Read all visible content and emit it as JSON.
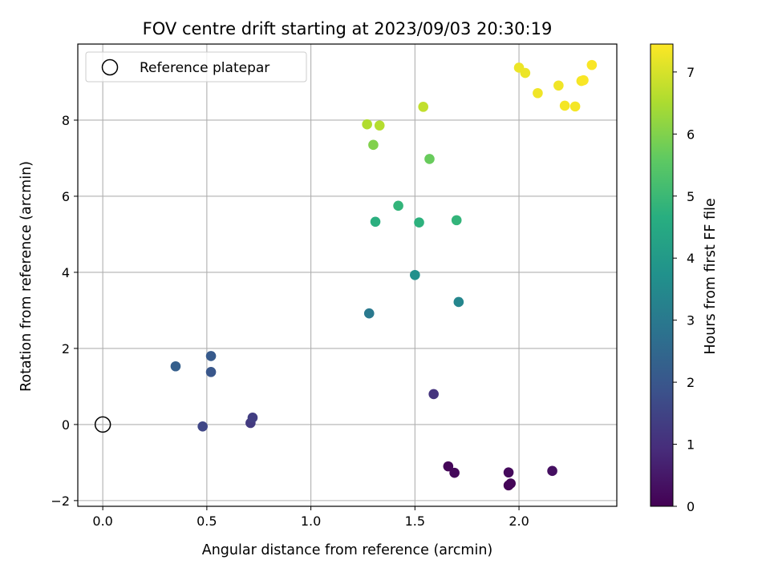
{
  "chart_data": {
    "type": "scatter",
    "title": "FOV centre drift starting at 2023/09/03 20:30:19",
    "xlabel": "Angular distance from reference (arcmin)",
    "ylabel": "Rotation from reference (arcmin)",
    "xlim": [
      -0.12,
      2.47
    ],
    "ylim": [
      -2.15,
      10.0
    ],
    "xticks": [
      0.0,
      0.5,
      1.0,
      1.5,
      2.0
    ],
    "xtick_labels": [
      "0.0",
      "0.5",
      "1.0",
      "1.5",
      "2.0"
    ],
    "yticks": [
      -2,
      0,
      2,
      4,
      6,
      8
    ],
    "ytick_labels": [
      "−2",
      "0",
      "2",
      "4",
      "6",
      "8"
    ],
    "grid": true,
    "legend": {
      "placement": "top-left",
      "entries": [
        "Reference platepar"
      ]
    },
    "reference_point": {
      "x": 0.0,
      "y": 0.0
    },
    "colorbar": {
      "label": "Hours from first FF file",
      "range": [
        0,
        7.45
      ],
      "ticks": [
        0,
        1,
        2,
        3,
        4,
        5,
        6,
        7
      ],
      "tick_labels": [
        "0",
        "1",
        "2",
        "3",
        "4",
        "5",
        "6",
        "7"
      ],
      "colormap": "viridis"
    },
    "points": [
      {
        "x": 1.66,
        "y": -1.1,
        "t": 0.1
      },
      {
        "x": 1.69,
        "y": -1.27,
        "t": 0.15
      },
      {
        "x": 1.95,
        "y": -1.26,
        "t": 0.2
      },
      {
        "x": 1.95,
        "y": -1.6,
        "t": 0.05
      },
      {
        "x": 1.96,
        "y": -1.55,
        "t": 0.1
      },
      {
        "x": 2.16,
        "y": -1.22,
        "t": 0.3
      },
      {
        "x": 1.59,
        "y": 0.8,
        "t": 1.1
      },
      {
        "x": 0.71,
        "y": 0.04,
        "t": 1.25
      },
      {
        "x": 0.72,
        "y": 0.18,
        "t": 1.35
      },
      {
        "x": 0.48,
        "y": -0.05,
        "t": 1.55
      },
      {
        "x": 0.52,
        "y": 1.38,
        "t": 2.0
      },
      {
        "x": 0.52,
        "y": 1.8,
        "t": 2.1
      },
      {
        "x": 0.35,
        "y": 1.53,
        "t": 2.25
      },
      {
        "x": 1.28,
        "y": 2.92,
        "t": 3.0
      },
      {
        "x": 1.71,
        "y": 3.22,
        "t": 3.4
      },
      {
        "x": 1.5,
        "y": 3.93,
        "t": 3.7
      },
      {
        "x": 1.31,
        "y": 5.33,
        "t": 4.7
      },
      {
        "x": 1.52,
        "y": 5.31,
        "t": 4.75
      },
      {
        "x": 1.7,
        "y": 5.37,
        "t": 4.85
      },
      {
        "x": 1.42,
        "y": 5.75,
        "t": 4.85
      },
      {
        "x": 1.57,
        "y": 6.98,
        "t": 5.7
      },
      {
        "x": 1.3,
        "y": 7.35,
        "t": 6.0
      },
      {
        "x": 1.27,
        "y": 7.89,
        "t": 6.55
      },
      {
        "x": 1.33,
        "y": 7.86,
        "t": 6.6
      },
      {
        "x": 1.54,
        "y": 8.35,
        "t": 6.75
      },
      {
        "x": 2.0,
        "y": 9.38,
        "t": 7.25
      },
      {
        "x": 2.03,
        "y": 9.24,
        "t": 7.25
      },
      {
        "x": 2.09,
        "y": 8.71,
        "t": 7.3
      },
      {
        "x": 2.19,
        "y": 8.91,
        "t": 7.3
      },
      {
        "x": 2.22,
        "y": 8.38,
        "t": 7.35
      },
      {
        "x": 2.27,
        "y": 8.36,
        "t": 7.35
      },
      {
        "x": 2.3,
        "y": 9.03,
        "t": 7.35
      },
      {
        "x": 2.31,
        "y": 9.05,
        "t": 7.4
      },
      {
        "x": 2.35,
        "y": 9.45,
        "t": 7.4
      }
    ]
  }
}
